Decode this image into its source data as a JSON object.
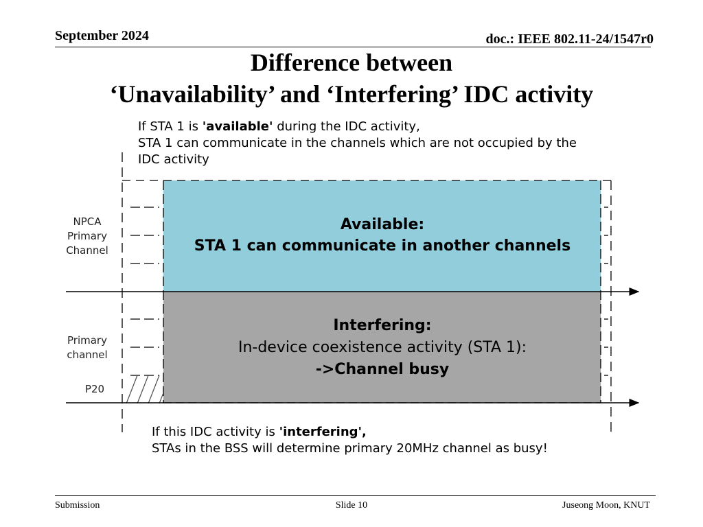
{
  "header": {
    "date": "September 2024",
    "doc": "doc.: IEEE 802.11-24/1547r0"
  },
  "title": {
    "line1": "Difference between",
    "line2": "‘Unavailability’ and ‘Interfering’ IDC activity"
  },
  "figure": {
    "top_note": {
      "line1_prefix": "If STA 1 is ",
      "line1_bold": "'available'",
      "line1_suffix": " during the IDC activity,",
      "line2": "STA 1 can communicate in the channels which are not occupied by the",
      "line3": "IDC activity"
    },
    "available_box": {
      "heading": "Available:",
      "body": "STA 1 can communicate in another channels",
      "color": "#92CDDC"
    },
    "interfering_box": {
      "heading": "Interfering:",
      "body": "In-device coexistence activity (STA 1):",
      "emphasis": "->Channel busy",
      "color": "#A6A6A6"
    },
    "labels": {
      "npca_line1": "NPCA",
      "npca_line2": "Primary",
      "npca_line3": "Channel",
      "primary_line1": "Primary",
      "primary_line2": "channel",
      "p20": "P20"
    },
    "bottom_note": {
      "line1_prefix": "If this IDC activity is ",
      "line1_bold": "'interfering',",
      "line2": "STAs in the BSS will determine primary 20MHz channel as busy!"
    }
  },
  "footer": {
    "left": "Submission",
    "center": "Slide 10",
    "right": "Juseong Moon, KNUT"
  }
}
